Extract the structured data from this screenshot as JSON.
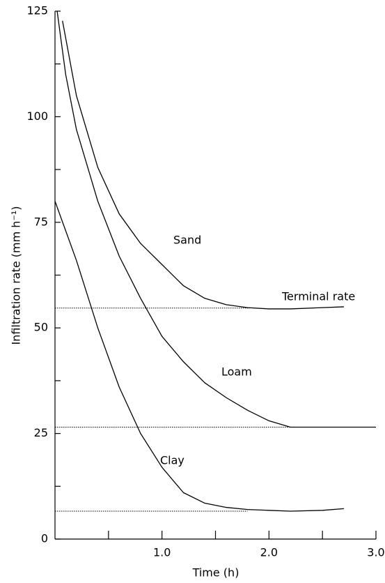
{
  "chart_data": {
    "type": "line",
    "y_label": "Infiltration rate (mm h⁻¹)",
    "x_label": "Time (h)",
    "xlim": [
      0,
      3
    ],
    "ylim": [
      0,
      125
    ],
    "xticks": [
      {
        "value": 1,
        "label": "1.0"
      },
      {
        "value": 2,
        "label": "2.0"
      },
      {
        "value": 3,
        "label": "3.0"
      }
    ],
    "xminor_ticks": [
      0.5,
      1.5,
      2.5
    ],
    "yticks": [
      0,
      25,
      50,
      75,
      100,
      125
    ],
    "yminor_ticks": [
      12.5,
      37.5,
      62.5,
      87.5,
      112.5
    ],
    "annotations": [
      "Sand",
      "Terminal rate",
      "Loam",
      "Clay"
    ],
    "series": [
      {
        "name": "Sand",
        "color": "#000000",
        "terminal": 54.7,
        "terminal_end": 1.82,
        "x": [
          0.07,
          0.2,
          0.4,
          0.6,
          0.8,
          1.0,
          1.2,
          1.4,
          1.6,
          1.8,
          2.0,
          2.2,
          2.5,
          2.7
        ],
        "values": [
          122.7,
          105,
          88,
          77,
          70,
          65,
          60,
          57,
          55.5,
          54.8,
          54.5,
          54.5,
          54.8,
          55
        ]
      },
      {
        "name": "Loam",
        "color": "#000000",
        "terminal": 26.5,
        "terminal_end": 2.2,
        "x": [
          0.02,
          0.1,
          0.2,
          0.4,
          0.6,
          0.8,
          1.0,
          1.2,
          1.4,
          1.6,
          1.8,
          2.0,
          2.2,
          2.5,
          3.0
        ],
        "values": [
          125,
          110,
          97,
          80,
          67,
          57,
          48,
          42,
          37,
          33.5,
          30.5,
          28,
          26.5,
          26.5,
          26.5
        ]
      },
      {
        "name": "Clay",
        "color": "#000000",
        "terminal": 6.6,
        "terminal_end": 1.8,
        "x": [
          0,
          0.2,
          0.4,
          0.6,
          0.8,
          1.0,
          1.2,
          1.4,
          1.6,
          1.8,
          2.0,
          2.2,
          2.5,
          2.7
        ],
        "values": [
          80,
          66,
          50,
          36,
          25,
          17,
          11,
          8.5,
          7.5,
          7,
          6.8,
          6.6,
          6.8,
          7.2
        ]
      }
    ]
  }
}
